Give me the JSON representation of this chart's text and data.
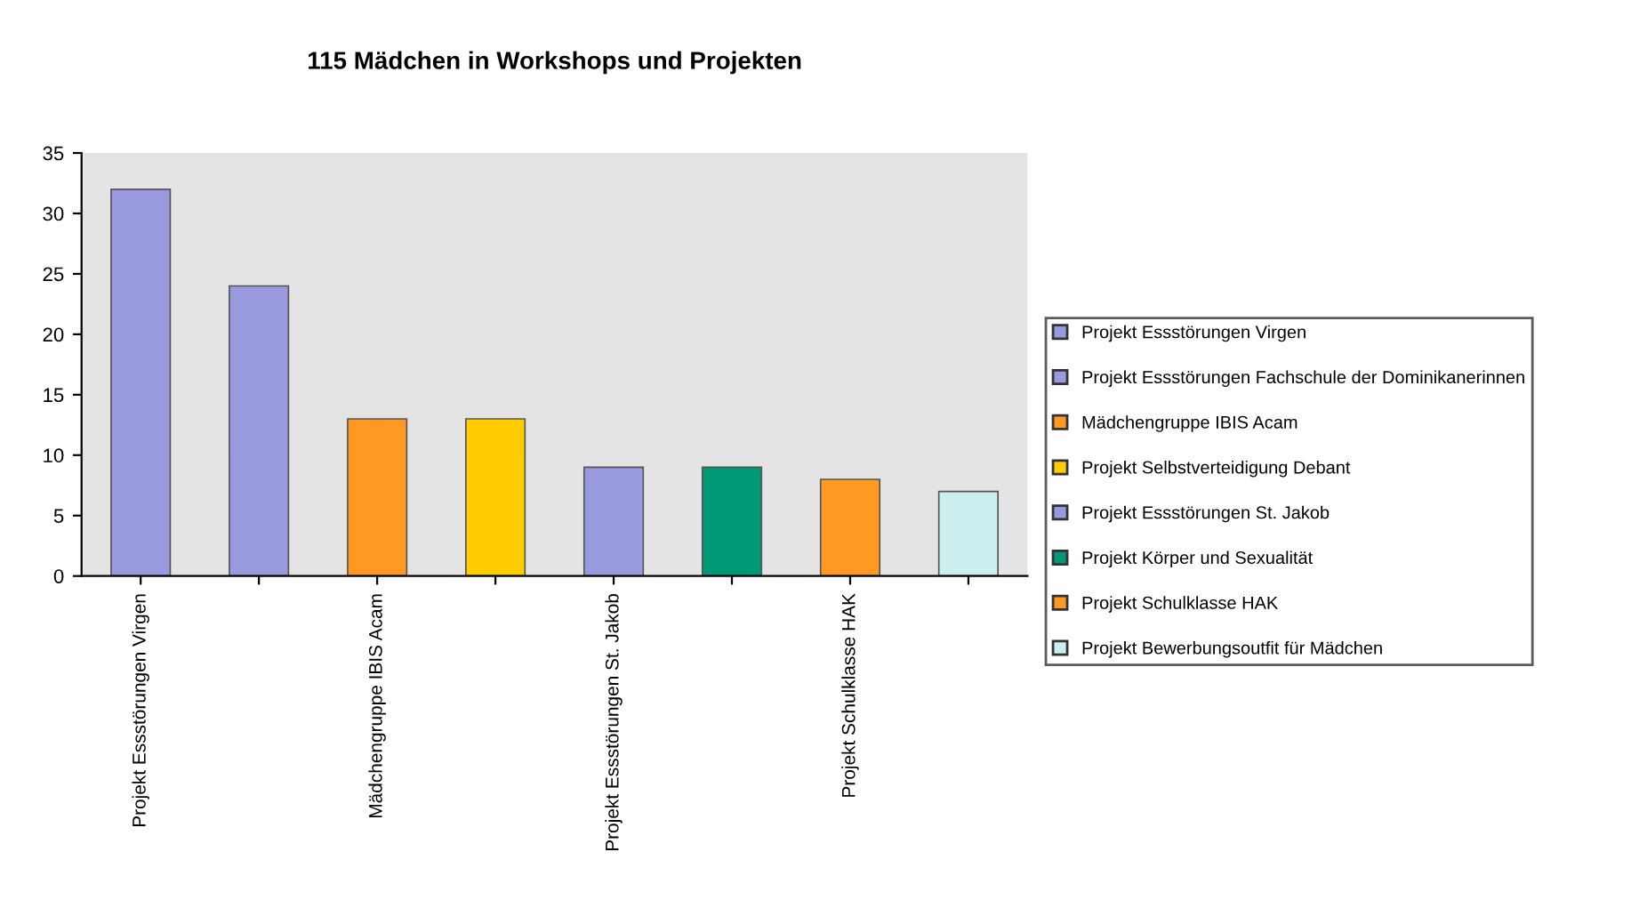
{
  "chart_data": {
    "type": "bar",
    "title": "115 Mädchen in Workshops und Projekten",
    "categories": [
      "Projekt Essstörungen Virgen",
      null,
      "Mädchengruppe IBIS Acam",
      null,
      "Projekt Essstörungen St. Jakob",
      null,
      "Projekt Schulklasse HAK",
      null
    ],
    "series": [
      {
        "name": "Projekt Essstörungen Virgen",
        "color": "#9999dd",
        "values": [
          32,
          null,
          null,
          null,
          null,
          null,
          null,
          null
        ]
      },
      {
        "name": "Projekt Essstörungen Fachschule der Dominikanerinnen",
        "color": "#9999dd",
        "values": [
          null,
          24,
          null,
          null,
          null,
          null,
          null,
          null
        ]
      },
      {
        "name": "Mädchengruppe IBIS Acam",
        "color": "#ff9922",
        "values": [
          null,
          null,
          13,
          null,
          null,
          null,
          null,
          null
        ]
      },
      {
        "name": "Projekt Selbstverteidigung Debant",
        "color": "#ffcc00",
        "values": [
          null,
          null,
          null,
          13,
          null,
          null,
          null,
          null
        ]
      },
      {
        "name": "Projekt Essstörungen St. Jakob",
        "color": "#9999dd",
        "values": [
          null,
          null,
          null,
          null,
          9,
          null,
          null,
          null
        ]
      },
      {
        "name": "Projekt Körper und Sexualität",
        "color": "#009977",
        "values": [
          null,
          null,
          null,
          null,
          null,
          9,
          null,
          null
        ]
      },
      {
        "name": "Projekt Schulklasse HAK",
        "color": "#ff9922",
        "values": [
          null,
          null,
          null,
          null,
          null,
          null,
          8,
          null
        ]
      },
      {
        "name": "Projekt Bewerbungsoutfit für Mädchen",
        "color": "#cceeee",
        "values": [
          null,
          null,
          null,
          null,
          null,
          null,
          null,
          7
        ]
      }
    ],
    "ylim": [
      0,
      35
    ],
    "yticks": [
      0,
      5,
      10,
      15,
      20,
      25,
      30,
      35
    ],
    "grid": false,
    "legend": "right"
  }
}
